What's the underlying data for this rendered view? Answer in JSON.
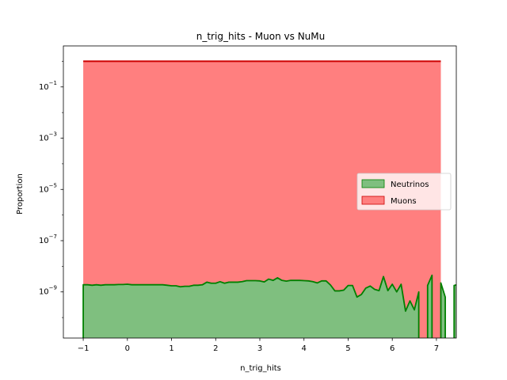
{
  "chart_data": {
    "type": "area",
    "title": "n_trig_hits - Muon vs NuMu",
    "xlabel": "n_trig_hits",
    "ylabel": "Proportion",
    "xlim": [
      -1.45,
      7.45
    ],
    "ylim_log10": [
      -10.8,
      0.6
    ],
    "y_scale": "log",
    "grid": false,
    "legend_position": "center-right",
    "x_ticks": [
      -1,
      0,
      1,
      2,
      3,
      4,
      5,
      6,
      7
    ],
    "x_tick_labels": [
      "−1",
      "0",
      "1",
      "2",
      "3",
      "4",
      "5",
      "6",
      "7"
    ],
    "y_ticks_exp": [
      -9,
      -7,
      -5,
      -3,
      -1
    ],
    "series": [
      {
        "name": "Neutrinos",
        "color": "#008000",
        "fill": "#7fbf7f",
        "x_start": -1.0,
        "x_step": 0.1,
        "log10_values": [
          -8.72,
          -8.72,
          -8.74,
          -8.72,
          -8.74,
          -8.72,
          -8.72,
          -8.72,
          -8.71,
          -8.71,
          -8.7,
          -8.72,
          -8.72,
          -8.72,
          -8.72,
          -8.72,
          -8.72,
          -8.72,
          -8.72,
          -8.74,
          -8.76,
          -8.76,
          -8.8,
          -8.78,
          -8.78,
          -8.74,
          -8.74,
          -8.72,
          -8.62,
          -8.66,
          -8.66,
          -8.6,
          -8.66,
          -8.62,
          -8.62,
          -8.62,
          -8.6,
          -8.56,
          -8.56,
          -8.56,
          -8.57,
          -8.61,
          -8.5,
          -8.55,
          -8.45,
          -8.55,
          -8.58,
          -8.55,
          -8.55,
          -8.55,
          -8.56,
          -8.57,
          -8.6,
          -8.65,
          -8.57,
          -8.57,
          -8.73,
          -8.96,
          -8.96,
          -8.93,
          -8.75,
          -8.75,
          -9.2,
          -9.1,
          -8.85,
          -8.77,
          -8.9,
          -8.95,
          -8.4,
          -8.95,
          -8.7,
          -9.0,
          -8.7,
          -9.75,
          -9.35,
          -9.7,
          -9.0,
          null,
          -8.75,
          -8.35,
          null,
          -8.65,
          -9.2,
          null,
          -8.75,
          -8.7
        ],
        "x_end": 6.55
      },
      {
        "name": "Muons",
        "color": "#cc0000",
        "fill": "#ff7f7f",
        "x": [
          -1.0,
          7.1
        ],
        "log10_values": [
          0.0,
          0.0
        ]
      }
    ]
  }
}
